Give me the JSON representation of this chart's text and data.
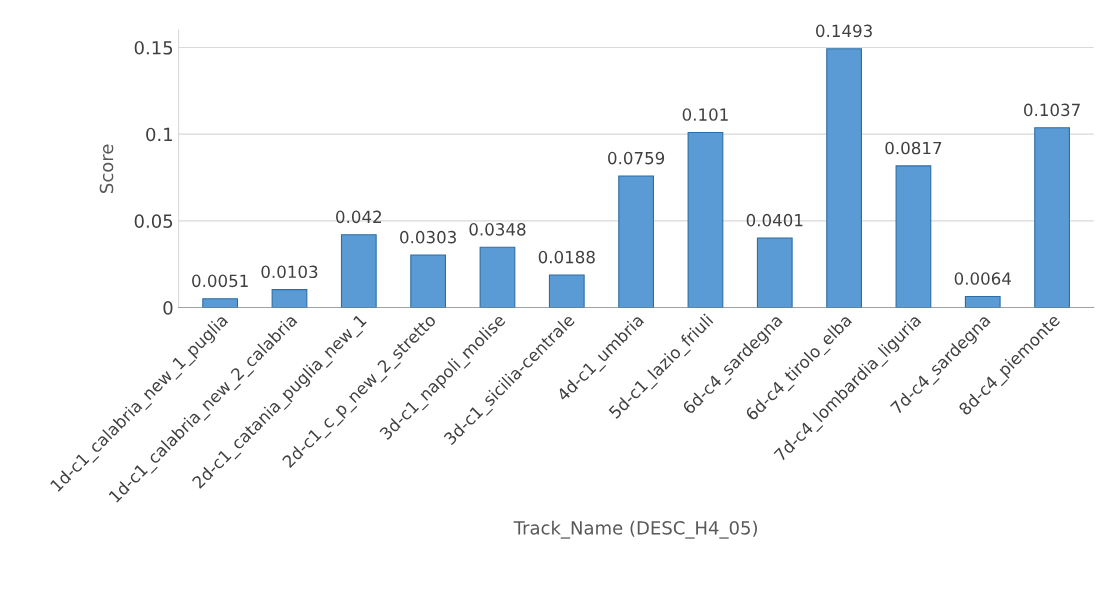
{
  "chart_data": {
    "type": "bar",
    "xlabel": "Track_Name (DESC_H4_05)",
    "ylabel": "Score",
    "categories": [
      "1d-c1_calabria_new_1_puglia",
      "1d-c1_calabria_new_2_calabria",
      "2d-c1_catania_puglia_new_1",
      "2d-c1_c_p_new_2_stretto",
      "3d-c1_napoli_molise",
      "3d-c1_sicilia-centrale",
      "4d-c1_umbria",
      "5d-c1_lazio_friuli",
      "6d-c4_sardegna",
      "6d-c4_tirolo_elba",
      "7d-c4_lombardia_liguria",
      "7d-c4_sardegna",
      "8d-c4_piemonte"
    ],
    "values": [
      0.0051,
      0.0103,
      0.042,
      0.0303,
      0.0348,
      0.0188,
      0.0759,
      0.101,
      0.0401,
      0.1493,
      0.0817,
      0.0064,
      0.1037
    ],
    "color": "#5b9bd5",
    "ylim": [
      0,
      0.16
    ],
    "yticks": [
      0,
      0.05,
      0.1,
      0.15
    ],
    "grid": "y",
    "data_labels": true
  }
}
